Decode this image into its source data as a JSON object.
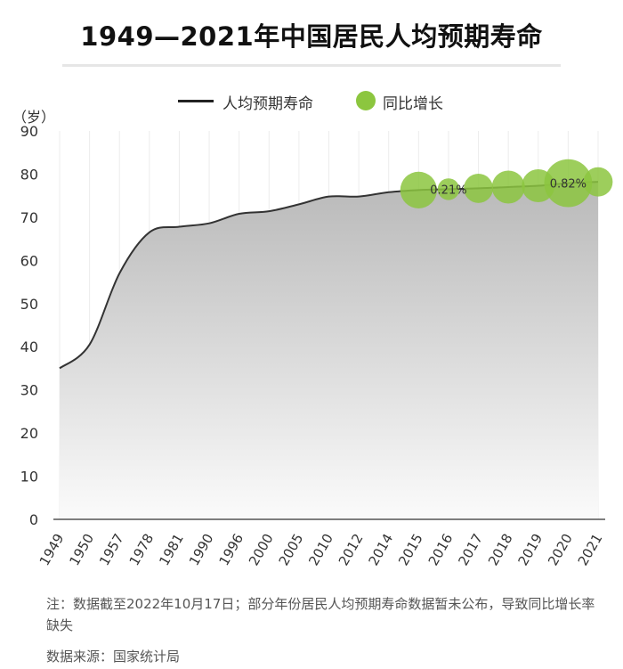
{
  "title": "1949—2021年中国居民人均预期寿命",
  "legend": {
    "line_label": "人均预期寿命",
    "dot_label": "同比增长"
  },
  "unit_label": "（岁）",
  "note": "注：数据截至2022年10月17日；部分年份居民人均预期寿命数据暂未公布，导致同比增长率缺失",
  "source": "数据来源：国家统计局",
  "colors": {
    "line": "#333333",
    "dot": "#8cc63f",
    "area_top": "#b9b9b9",
    "area_bottom": "#fbfbfb"
  },
  "chart_data": {
    "type": "area",
    "title": "1949—2021年中国居民人均预期寿命",
    "ylabel": "（岁）",
    "ylim": [
      0,
      90
    ],
    "yticks": [
      0,
      10,
      20,
      30,
      40,
      50,
      60,
      70,
      80,
      90
    ],
    "categories": [
      "1949",
      "1950",
      "1957",
      "1978",
      "1981",
      "1990",
      "1996",
      "2000",
      "2005",
      "2010",
      "2012",
      "2014",
      "2015",
      "2016",
      "2017",
      "2018",
      "2019",
      "2020",
      "2021"
    ],
    "series": [
      {
        "name": "人均预期寿命",
        "values": [
          35.0,
          40.5,
          57.0,
          66.5,
          67.8,
          68.6,
          70.8,
          71.4,
          73.0,
          74.8,
          74.8,
          75.8,
          76.3,
          76.5,
          76.7,
          77.0,
          77.3,
          77.9,
          78.2
        ]
      }
    ],
    "growth_bubbles": [
      {
        "category": "2015",
        "value": 76.3,
        "size": 3
      },
      {
        "category": "2016",
        "value": 76.5,
        "size": 1,
        "label": "0.21%"
      },
      {
        "category": "2017",
        "value": 76.7,
        "size": 2
      },
      {
        "category": "2018",
        "value": 77.0,
        "size": 2.5
      },
      {
        "category": "2019",
        "value": 77.3,
        "size": 2.5
      },
      {
        "category": "2020",
        "value": 77.9,
        "size": 4.5,
        "label": "0.82%"
      },
      {
        "category": "2021",
        "value": 78.2,
        "size": 2
      }
    ],
    "grid": true
  }
}
